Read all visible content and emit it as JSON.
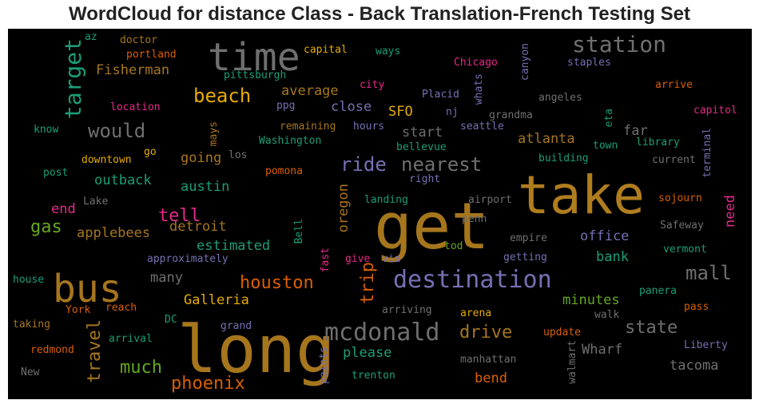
{
  "title": "WordCloud for distance Class - Back Translation-French Testing Set",
  "palette": {
    "gold": "#b07d1e",
    "gray": "#6f6f6f",
    "purple": "#7570b3",
    "green": "#1b9e77",
    "olive": "#66a61e",
    "orange": "#d95f02",
    "pink": "#e7298a",
    "yellow": "#e6ab02",
    "tan": "#a6761d"
  },
  "words": [
    {
      "id": "take",
      "text": "take"
    },
    {
      "id": "get",
      "text": "get"
    },
    {
      "id": "long",
      "text": "long"
    },
    {
      "id": "time",
      "text": "time"
    },
    {
      "id": "bus",
      "text": "bus"
    },
    {
      "id": "destination",
      "text": "destination"
    },
    {
      "id": "mcdonald",
      "text": "mcdonald"
    },
    {
      "id": "station",
      "text": "station"
    },
    {
      "id": "target",
      "text": "target"
    },
    {
      "id": "beach",
      "text": "beach"
    },
    {
      "id": "would",
      "text": "would"
    },
    {
      "id": "ride",
      "text": "ride"
    },
    {
      "id": "nearest",
      "text": "nearest"
    },
    {
      "id": "mall",
      "text": "mall"
    },
    {
      "id": "houston",
      "text": "houston"
    },
    {
      "id": "trip",
      "text": "trip"
    },
    {
      "id": "drive",
      "text": "drive"
    },
    {
      "id": "state",
      "text": "state"
    },
    {
      "id": "travel",
      "text": "travel"
    },
    {
      "id": "much",
      "text": "much"
    },
    {
      "id": "phoenix",
      "text": "phoenix"
    },
    {
      "id": "tell",
      "text": "tell"
    },
    {
      "id": "gas",
      "text": "gas"
    },
    {
      "id": "Fisherman",
      "text": "Fisherman"
    },
    {
      "id": "average",
      "text": "average"
    },
    {
      "id": "close",
      "text": "close"
    },
    {
      "id": "SFO",
      "text": "SFO"
    },
    {
      "id": "start",
      "text": "start"
    },
    {
      "id": "far",
      "text": "far"
    },
    {
      "id": "atlanta",
      "text": "atlanta"
    },
    {
      "id": "going",
      "text": "going"
    },
    {
      "id": "outback",
      "text": "outback"
    },
    {
      "id": "austin",
      "text": "austin"
    },
    {
      "id": "applebees",
      "text": "applebees"
    },
    {
      "id": "detroit",
      "text": "detroit"
    },
    {
      "id": "estimated",
      "text": "estimated"
    },
    {
      "id": "oregon",
      "text": "oregon"
    },
    {
      "id": "office",
      "text": "office"
    },
    {
      "id": "bank",
      "text": "bank"
    },
    {
      "id": "many",
      "text": "many"
    },
    {
      "id": "Galleria",
      "text": "Galleria"
    },
    {
      "id": "minutes",
      "text": "minutes"
    },
    {
      "id": "Wharf",
      "text": "Wharf"
    },
    {
      "id": "tacoma",
      "text": "tacoma"
    },
    {
      "id": "please",
      "text": "please"
    },
    {
      "id": "bend",
      "text": "bend"
    },
    {
      "id": "end",
      "text": "end"
    },
    {
      "id": "need",
      "text": "need"
    },
    {
      "id": "Chicago",
      "text": "Chicago"
    },
    {
      "id": "capital",
      "text": "capital"
    },
    {
      "id": "ways",
      "text": "ways"
    },
    {
      "id": "staples",
      "text": "staples"
    },
    {
      "id": "portland",
      "text": "portland"
    },
    {
      "id": "doctor",
      "text": "doctor"
    },
    {
      "id": "az",
      "text": "az"
    },
    {
      "id": "pittsburgh",
      "text": "pittsburgh"
    },
    {
      "id": "canyon",
      "text": "canyon"
    },
    {
      "id": "whats",
      "text": "whats"
    },
    {
      "id": "arrive",
      "text": "arrive"
    },
    {
      "id": "city",
      "text": "city"
    },
    {
      "id": "Placid",
      "text": "Placid"
    },
    {
      "id": "angeles",
      "text": "angeles"
    },
    {
      "id": "capitol",
      "text": "capitol"
    },
    {
      "id": "location",
      "text": "location"
    },
    {
      "id": "ppg",
      "text": "ppg"
    },
    {
      "id": "nj",
      "text": "nj"
    },
    {
      "id": "grandma",
      "text": "grandma"
    },
    {
      "id": "eta",
      "text": "eta"
    },
    {
      "id": "know",
      "text": "know"
    },
    {
      "id": "mays",
      "text": "mays"
    },
    {
      "id": "remaining",
      "text": "remaining"
    },
    {
      "id": "hours",
      "text": "hours"
    },
    {
      "id": "seattle",
      "text": "seattle"
    },
    {
      "id": "Washington",
      "text": "Washington"
    },
    {
      "id": "town",
      "text": "town"
    },
    {
      "id": "library",
      "text": "library"
    },
    {
      "id": "go",
      "text": "go"
    },
    {
      "id": "los",
      "text": "los"
    },
    {
      "id": "bellevue",
      "text": "bellevue"
    },
    {
      "id": "downtown",
      "text": "downtown"
    },
    {
      "id": "building",
      "text": "building"
    },
    {
      "id": "current",
      "text": "current"
    },
    {
      "id": "terminal",
      "text": "terminal"
    },
    {
      "id": "post",
      "text": "post"
    },
    {
      "id": "pomona",
      "text": "pomona"
    },
    {
      "id": "right",
      "text": "right"
    },
    {
      "id": "Lake",
      "text": "Lake"
    },
    {
      "id": "landing",
      "text": "landing"
    },
    {
      "id": "airport",
      "text": "airport"
    },
    {
      "id": "sojourn",
      "text": "sojourn"
    },
    {
      "id": "penn",
      "text": "penn"
    },
    {
      "id": "Bell",
      "text": "Bell"
    },
    {
      "id": "Safeway",
      "text": "Safeway"
    },
    {
      "id": "empire",
      "text": "empire"
    },
    {
      "id": "tod",
      "text": "tod"
    },
    {
      "id": "vermont",
      "text": "vermont"
    },
    {
      "id": "approximately",
      "text": "approximately"
    },
    {
      "id": "fast",
      "text": "fast"
    },
    {
      "id": "give",
      "text": "give"
    },
    {
      "id": "via",
      "text": "via"
    },
    {
      "id": "getting",
      "text": "getting"
    },
    {
      "id": "house",
      "text": "house"
    },
    {
      "id": "panera",
      "text": "panera"
    },
    {
      "id": "York",
      "text": "York"
    },
    {
      "id": "reach",
      "text": "reach"
    },
    {
      "id": "arriving",
      "text": "arriving"
    },
    {
      "id": "pass",
      "text": "pass"
    },
    {
      "id": "arena",
      "text": "arena"
    },
    {
      "id": "DC",
      "text": "DC"
    },
    {
      "id": "walk",
      "text": "walk"
    },
    {
      "id": "taking",
      "text": "taking"
    },
    {
      "id": "grand",
      "text": "grand"
    },
    {
      "id": "update",
      "text": "update"
    },
    {
      "id": "arrival",
      "text": "arrival"
    },
    {
      "id": "redmond",
      "text": "redmond"
    },
    {
      "id": "Liberty",
      "text": "Liberty"
    },
    {
      "id": "paints",
      "text": "paints"
    },
    {
      "id": "manhattan",
      "text": "manhattan"
    },
    {
      "id": "walmart",
      "text": "walmart"
    },
    {
      "id": "New",
      "text": "New"
    },
    {
      "id": "trenton",
      "text": "trenton"
    }
  ]
}
